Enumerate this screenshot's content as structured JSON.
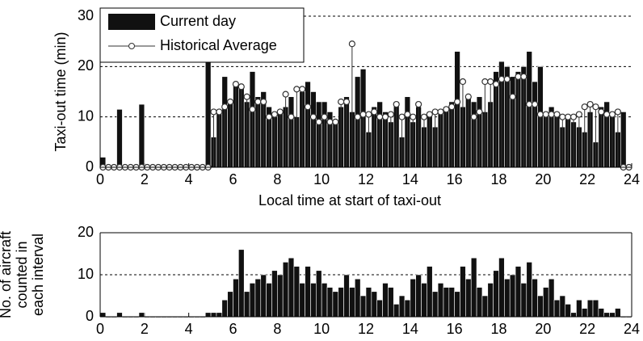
{
  "chart_data": [
    {
      "type": "bar",
      "ylabel": "Taxi-out time (min)",
      "xlabel": "Local time at start of taxi-out",
      "x": [
        0,
        0.25,
        0.5,
        0.75,
        1,
        1.25,
        1.5,
        1.75,
        2,
        2.25,
        2.5,
        2.75,
        3,
        3.25,
        3.5,
        3.75,
        4,
        4.25,
        4.5,
        4.75,
        5,
        5.25,
        5.5,
        5.75,
        6,
        6.25,
        6.5,
        6.75,
        7,
        7.25,
        7.5,
        7.75,
        8,
        8.25,
        8.5,
        8.75,
        9,
        9.25,
        9.5,
        9.75,
        10,
        10.25,
        10.5,
        10.75,
        11,
        11.25,
        11.5,
        11.75,
        12,
        12.25,
        12.5,
        12.75,
        13,
        13.25,
        13.5,
        13.75,
        14,
        14.25,
        14.5,
        14.75,
        15,
        15.25,
        15.5,
        15.75,
        16,
        16.25,
        16.5,
        16.75,
        17,
        17.25,
        17.5,
        17.75,
        18,
        18.25,
        18.5,
        18.75,
        19,
        19.25,
        19.5,
        19.75,
        20,
        20.25,
        20.5,
        20.75,
        21,
        21.25,
        21.5,
        21.75,
        22,
        22.25,
        22.5,
        22.75,
        23,
        23.25,
        23.5,
        23.75
      ],
      "series": [
        {
          "name": "Current day",
          "type": "bar",
          "color": "#111111",
          "values": [
            2,
            0,
            0,
            11.5,
            0,
            0,
            0,
            12.5,
            0,
            0,
            0,
            0,
            0,
            0,
            0,
            0,
            0,
            0,
            0,
            21,
            6,
            11,
            18,
            13,
            17,
            16,
            13,
            19,
            14,
            15,
            12,
            10,
            11,
            12,
            14,
            10,
            15,
            17,
            15,
            13,
            13,
            11,
            9,
            12,
            14,
            11,
            18,
            19.5,
            7,
            12,
            13,
            11,
            9,
            13,
            6,
            14,
            9,
            12,
            8,
            11,
            8,
            11,
            12,
            13,
            23,
            12,
            14,
            13,
            14,
            11,
            13,
            19,
            21,
            20,
            18,
            19,
            20,
            23,
            17,
            20,
            11,
            12,
            11,
            8,
            10,
            9,
            8,
            7,
            11,
            5,
            12,
            13,
            11,
            7,
            11,
            0
          ]
        },
        {
          "name": "Historical Average",
          "type": "stem",
          "color": "#333333",
          "values": [
            0,
            0,
            0,
            0,
            0,
            0,
            0,
            0,
            0,
            0,
            0,
            0,
            0,
            0,
            0,
            0,
            0,
            0,
            0,
            0,
            11,
            11,
            12,
            13,
            16.5,
            16,
            14,
            11.5,
            13,
            13,
            10,
            10.5,
            11,
            14.5,
            10,
            15.5,
            15.5,
            12,
            10,
            9,
            10,
            9,
            9,
            13,
            13,
            24.5,
            10,
            10.5,
            10.5,
            11,
            10,
            10,
            10.5,
            12.5,
            10,
            10.5,
            10,
            12.5,
            10,
            10.5,
            11,
            11,
            11.5,
            12,
            13,
            17,
            14,
            10,
            11,
            17,
            17,
            16.5,
            17.5,
            17.5,
            14,
            18,
            18,
            12.5,
            12.5,
            10.5,
            10.5,
            10.5,
            10.5,
            10,
            10,
            10,
            10.5,
            12,
            12.5,
            12,
            11,
            10.5,
            10.5,
            11,
            0,
            0
          ]
        }
      ],
      "xlim": [
        0,
        24
      ],
      "xticks": [
        0,
        2,
        4,
        6,
        8,
        10,
        12,
        14,
        16,
        18,
        20,
        22,
        24
      ],
      "ylim": [
        0,
        30
      ],
      "yticks": [
        0,
        10,
        20,
        30
      ],
      "grid": true,
      "legend": "top-left"
    },
    {
      "type": "bar",
      "ylabel": [
        "No. of aircraft",
        "counted in",
        "each interval"
      ],
      "x": [
        0,
        0.25,
        0.5,
        0.75,
        1,
        1.25,
        1.5,
        1.75,
        2,
        2.25,
        2.5,
        2.75,
        3,
        3.25,
        3.5,
        3.75,
        4,
        4.25,
        4.5,
        4.75,
        5,
        5.25,
        5.5,
        5.75,
        6,
        6.25,
        6.5,
        6.75,
        7,
        7.25,
        7.5,
        7.75,
        8,
        8.25,
        8.5,
        8.75,
        9,
        9.25,
        9.5,
        9.75,
        10,
        10.25,
        10.5,
        10.75,
        11,
        11.25,
        11.5,
        11.75,
        12,
        12.25,
        12.5,
        12.75,
        13,
        13.25,
        13.5,
        13.75,
        14,
        14.25,
        14.5,
        14.75,
        15,
        15.25,
        15.5,
        15.75,
        16,
        16.25,
        16.5,
        16.75,
        17,
        17.25,
        17.5,
        17.75,
        18,
        18.25,
        18.5,
        18.75,
        19,
        19.25,
        19.5,
        19.75,
        20,
        20.25,
        20.5,
        20.75,
        21,
        21.25,
        21.5,
        21.75,
        22,
        22.25,
        22.5,
        22.75,
        23,
        23.25,
        23.5,
        23.75
      ],
      "series": [
        {
          "type": "bar",
          "color": "#111111",
          "values": [
            1,
            0,
            0,
            1,
            0,
            0,
            0,
            1,
            0,
            0,
            0,
            0,
            0,
            0,
            0,
            0,
            0,
            0,
            0,
            1,
            1,
            1,
            4,
            6,
            9,
            16,
            6,
            8,
            9,
            10,
            8,
            11,
            10,
            13,
            14,
            12,
            8,
            12,
            8,
            11,
            8,
            7,
            6,
            7,
            10,
            7,
            9,
            5,
            7,
            6,
            4,
            8,
            7,
            3,
            5,
            4,
            9,
            10,
            8,
            12,
            6,
            8,
            7,
            7,
            6,
            12,
            9,
            14,
            7,
            5,
            8,
            11,
            14,
            9,
            10,
            12,
            8,
            13,
            9,
            5,
            7,
            9,
            4,
            5,
            3,
            1,
            4,
            2,
            4,
            4,
            2,
            1,
            1,
            2,
            0,
            0
          ]
        }
      ],
      "xlim": [
        0,
        24
      ],
      "xticks": [
        0,
        2,
        4,
        6,
        8,
        10,
        12,
        14,
        16,
        18,
        20,
        22,
        24
      ],
      "ylim": [
        0,
        20
      ],
      "yticks": [
        0,
        10,
        20
      ],
      "grid": true
    }
  ]
}
